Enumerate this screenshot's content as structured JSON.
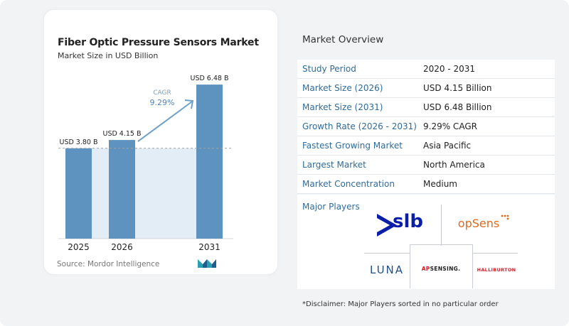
{
  "chart_data": {
    "type": "bar",
    "title": "Fiber Optic Pressure Sensors Market",
    "subtitle": "Market Size in USD Billion",
    "categories": [
      "2025",
      "2026",
      "2031"
    ],
    "values": [
      3.8,
      4.15,
      6.48
    ],
    "value_labels": [
      "USD 3.80 B",
      "USD 4.15 B",
      "USD 6.48 B"
    ],
    "ylim": [
      0,
      7.2
    ],
    "cagr_label": "CAGR",
    "cagr_value": "9.29%",
    "bar_color": "#5f93bf",
    "shade_color": "#e3edf5",
    "arrow_color": "#6fa1c8",
    "source": "Source:  Mordor Intelligence"
  },
  "overview": {
    "title": "Market Overview",
    "rows": [
      {
        "key": "Study Period",
        "value": "2020 - 2031"
      },
      {
        "key": "Market Size (2026)",
        "value": "USD 4.15 Billion"
      },
      {
        "key": "Market Size (2031)",
        "value": "USD 6.48 Billion"
      },
      {
        "key": "Growth Rate (2026 - 2031)",
        "value": "9.29% CAGR"
      },
      {
        "key": "Fastest Growing Market",
        "value": "Asia Pacific"
      },
      {
        "key": "Largest Market",
        "value": "North America"
      },
      {
        "key": "Market Concentration",
        "value": "Medium"
      }
    ],
    "players_label": "Major Players",
    "players": {
      "slb": "slb",
      "opsens": "opSens",
      "luna": "LUNA",
      "apsensing_a": "AP",
      "apsensing_b": "SENSING.",
      "halliburton": "HALLIBURTON"
    },
    "disclaimer": "*Disclaimer: Major Players sorted in no particular order"
  }
}
